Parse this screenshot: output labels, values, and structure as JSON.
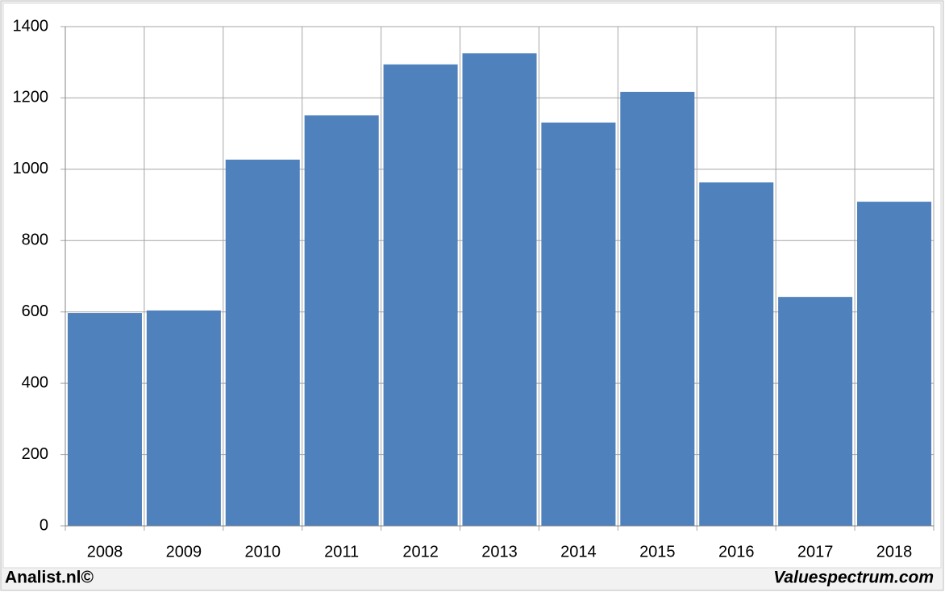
{
  "chart_data": {
    "type": "bar",
    "categories": [
      "2008",
      "2009",
      "2010",
      "2011",
      "2012",
      "2013",
      "2014",
      "2015",
      "2016",
      "2017",
      "2018"
    ],
    "values": [
      597,
      604,
      1027,
      1151,
      1294,
      1325,
      1131,
      1217,
      963,
      642,
      909
    ],
    "color": "#4f81bd",
    "ylim": [
      0,
      1400
    ],
    "yticks": [
      0,
      200,
      400,
      600,
      800,
      1000,
      1200,
      1400
    ],
    "grid": true
  },
  "footer": {
    "left": "Analist.nl©",
    "right": "Valuespectrum.com"
  }
}
